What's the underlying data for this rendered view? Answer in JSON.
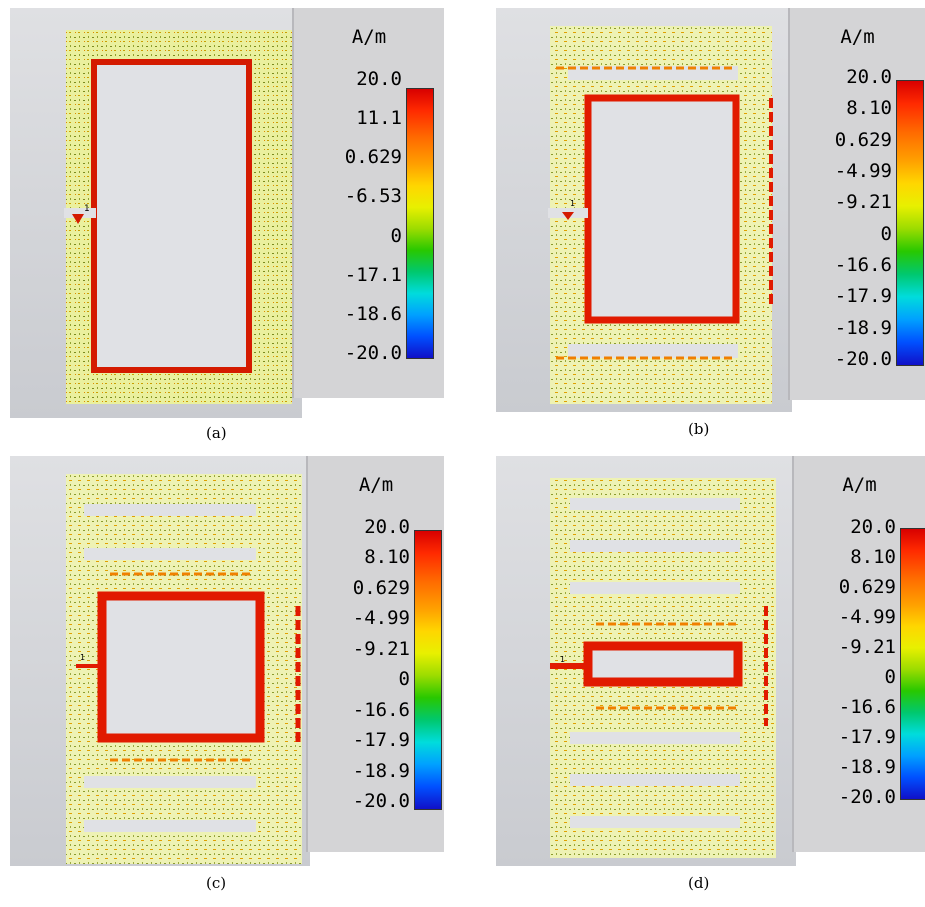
{
  "unit": "A/m",
  "panels": [
    {
      "caption": "(a)",
      "port_label": "1",
      "ticks": [
        "20.0",
        "11.1",
        "0.629",
        "-6.53",
        "0",
        "-17.1",
        "-18.6",
        "-20.0"
      ]
    },
    {
      "caption": "(b)",
      "port_label": "1",
      "ticks": [
        "20.0",
        "8.10",
        "0.629",
        "-4.99",
        "-9.21",
        "0",
        "-16.6",
        "-17.9",
        "-18.9",
        "-20.0"
      ]
    },
    {
      "caption": "(c)",
      "port_label": "1",
      "ticks": [
        "20.0",
        "8.10",
        "0.629",
        "-4.99",
        "-9.21",
        "0",
        "-16.6",
        "-17.9",
        "-18.9",
        "-20.0"
      ]
    },
    {
      "caption": "(d)",
      "port_label": "1",
      "ticks": [
        "20.0",
        "8.10",
        "0.629",
        "-4.99",
        "-9.21",
        "0",
        "-16.6",
        "-17.9",
        "-18.9",
        "-20.0"
      ]
    }
  ],
  "colors": {
    "field_low": "#e9ee9c",
    "field_mid": "#f2c400",
    "field_high": "#e11a00",
    "edge": "#d41a00",
    "background": "#d0d2d6"
  }
}
